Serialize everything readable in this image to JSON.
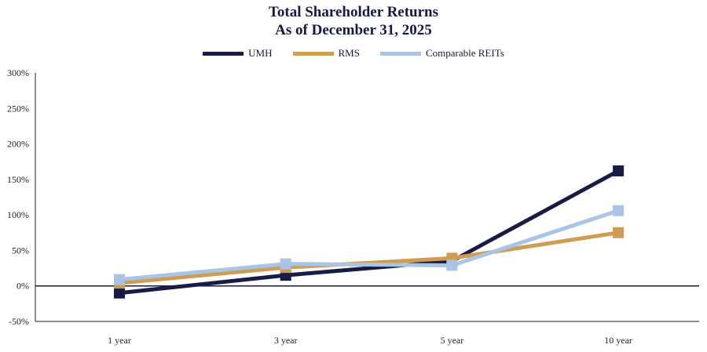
{
  "chart_data": {
    "type": "line",
    "title": "Total Shareholder Returns",
    "subtitle": "As of December 31, 2025",
    "categories": [
      "1 year",
      "3 year",
      "5 year",
      "10 year"
    ],
    "ylim": [
      -50,
      300
    ],
    "yticks": [
      "-50%",
      "0%",
      "50%",
      "100%",
      "150%",
      "200%",
      "250%",
      "300%"
    ],
    "ytick_values": [
      -50,
      0,
      50,
      100,
      150,
      200,
      250,
      300
    ],
    "legend_position": "top-center",
    "series": [
      {
        "name": "UMH",
        "color": "#171b45",
        "values": [
          -10,
          15,
          35,
          162
        ]
      },
      {
        "name": "RMS",
        "color": "#cf9c52",
        "values": [
          4,
          26,
          39,
          75
        ]
      },
      {
        "name": "Comparable REITs",
        "color": "#a9c4e4",
        "values": [
          9,
          31,
          29,
          106
        ]
      }
    ]
  }
}
